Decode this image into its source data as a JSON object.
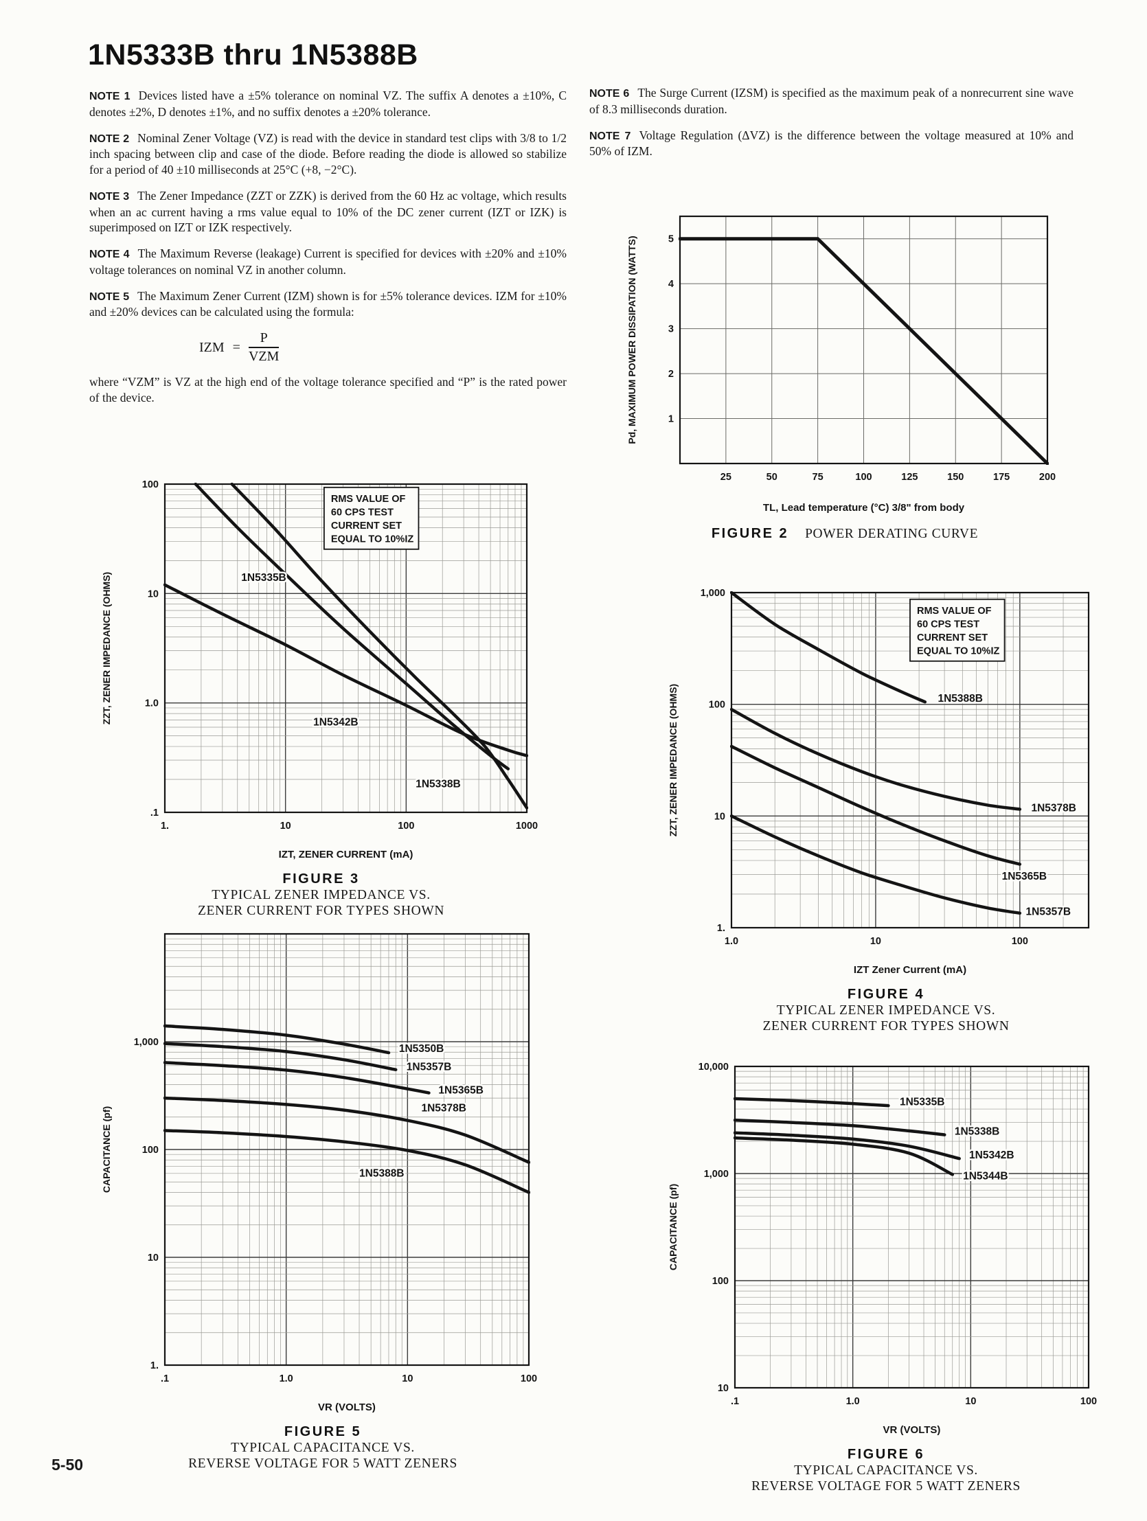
{
  "page": {
    "title": "1N5333B thru 1N5388B",
    "page_number": "5-50"
  },
  "notes_left": [
    {
      "label": "NOTE 1",
      "text": "Devices listed have a ±5% tolerance on nominal VZ. The suffix A denotes a ±10%, C denotes ±2%, D denotes ±1%, and no suffix denotes a ±20% tolerance."
    },
    {
      "label": "NOTE 2",
      "text": "Nominal Zener Voltage (VZ) is read with the device in standard test clips with 3/8 to 1/2 inch spacing between clip and case of the diode. Before reading the diode is allowed so stabilize for a period of 40 ±10 milliseconds at 25°C (+8, −2°C)."
    },
    {
      "label": "NOTE 3",
      "text": "The Zener Impedance (ZZT or ZZK) is derived from the 60 Hz ac voltage, which results when an ac current having a rms value equal to 10% of the DC zener current (IZT or IZK) is superimposed on IZT or IZK respectively."
    },
    {
      "label": "NOTE 4",
      "text": "The Maximum Reverse (leakage) Current is specified for devices with ±20% and ±10% voltage tolerances on nominal VZ in another column."
    },
    {
      "label": "NOTE 5",
      "text": "The Maximum Zener Current (IZM) shown is for ±5% tolerance devices. IZM for ±10% and ±20% devices can be calculated using the formula:"
    }
  ],
  "formula": {
    "lhs": "IZM",
    "eq": "=",
    "num": "P",
    "den": "VZM"
  },
  "where_text": "where “VZM” is VZ at the high end of the voltage tolerance specified and “P” is the rated power of the device.",
  "notes_right": [
    {
      "label": "NOTE 6",
      "text": "The Surge Current (IZSM) is specified as the maximum peak of a nonrecurrent sine wave of 8.3 milliseconds duration."
    },
    {
      "label": "NOTE 7",
      "text": "Voltage Regulation (ΔVZ) is the difference between the voltage measured at 10% and 50% of IZM."
    }
  ],
  "figures": {
    "fig2": {
      "label": "FIGURE 2",
      "title": "POWER DERATING CURVE"
    },
    "fig3": {
      "label": "FIGURE 3",
      "title1": "TYPICAL ZENER IMPEDANCE VS.",
      "title2": "ZENER CURRENT FOR TYPES SHOWN"
    },
    "fig4": {
      "label": "FIGURE 4",
      "title1": "TYPICAL ZENER IMPEDANCE VS.",
      "title2": "ZENER CURRENT FOR TYPES SHOWN"
    },
    "fig5": {
      "label": "FIGURE 5",
      "title1": "TYPICAL CAPACITANCE VS.",
      "title2": "REVERSE VOLTAGE FOR 5 WATT ZENERS"
    },
    "fig6": {
      "label": "FIGURE 6",
      "title1": "TYPICAL CAPACITANCE VS.",
      "title2": "REVERSE VOLTAGE FOR 5 WATT ZENERS"
    }
  },
  "colors": {
    "ink": "#141414",
    "grid_minor": "#9a9a95",
    "grid_major": "#3c3c3c",
    "paper": "#fcfcf9"
  },
  "chart_data": [
    {
      "id": "figure-2-power-derating",
      "type": "line",
      "xlog": false,
      "ylog": false,
      "xlim": [
        0,
        200
      ],
      "ylim": [
        0,
        5.5
      ],
      "xticks": [
        [
          25,
          "25"
        ],
        [
          50,
          "50"
        ],
        [
          75,
          "75"
        ],
        [
          100,
          "100"
        ],
        [
          125,
          "125"
        ],
        [
          150,
          "150"
        ],
        [
          175,
          "175"
        ],
        [
          200,
          "200"
        ]
      ],
      "yticks": [
        [
          1,
          "1"
        ],
        [
          2,
          "2"
        ],
        [
          3,
          "3"
        ],
        [
          4,
          "4"
        ],
        [
          5,
          "5"
        ]
      ],
      "xlabel": "TL, Lead temperature (°C) 3/8\" from body",
      "ylabel": "Pd, MAXIMUM POWER DISSIPATION (WATTS)",
      "grid": true,
      "straight": true,
      "lw": 5,
      "margins": {
        "l": 85,
        "r": 30,
        "t": 25,
        "b": 85
      },
      "series": [
        {
          "name": "power-derating-line",
          "points": [
            [
              0,
              5
            ],
            [
              75,
              5
            ],
            [
              200,
              0
            ]
          ]
        }
      ]
    },
    {
      "id": "figure-3-zener-impedance",
      "type": "line",
      "xlog": true,
      "ylog": true,
      "xlim": [
        1,
        1000
      ],
      "ylim": [
        0.1,
        100
      ],
      "xticks": [
        [
          1,
          "1."
        ],
        [
          10,
          "10"
        ],
        [
          100,
          "100"
        ],
        [
          1000,
          "1000"
        ]
      ],
      "yticks": [
        [
          0.1,
          ".1"
        ],
        [
          1,
          "1.0"
        ],
        [
          10,
          "10"
        ],
        [
          100,
          "100"
        ]
      ],
      "xlabel": "IZT, ZENER CURRENT (mA)",
      "ylabel": "ZZT, ZENER IMPEDANCE (OHMS)",
      "note": {
        "lines": [
          "RMS VALUE OF",
          "60 CPS TEST",
          "CURRENT SET",
          "EQUAL TO 10%IZ"
        ],
        "fx": 0.44,
        "fy": 0.01
      },
      "margins": {
        "l": 100,
        "r": 28,
        "t": 15,
        "b": 82
      },
      "series": [
        {
          "name": "1N5335B",
          "points": [
            [
              1.8,
              100
            ],
            [
              4,
              40
            ],
            [
              10,
              15
            ],
            [
              30,
              4.8
            ],
            [
              100,
              1.5
            ],
            [
              250,
              0.62
            ],
            [
              500,
              0.33
            ],
            [
              700,
              0.25
            ]
          ],
          "label_at": [
            4.3,
            13
          ]
        },
        {
          "name": "1N5342B",
          "points": [
            [
              1,
              12
            ],
            [
              3,
              6.5
            ],
            [
              10,
              3.4
            ],
            [
              30,
              1.8
            ],
            [
              100,
              0.95
            ],
            [
              300,
              0.52
            ],
            [
              700,
              0.37
            ],
            [
              1000,
              0.33
            ]
          ],
          "label_at": [
            17,
            0.62
          ]
        },
        {
          "name": "1N5338B",
          "points": [
            [
              3.6,
              100
            ],
            [
              8,
              40
            ],
            [
              20,
              13
            ],
            [
              50,
              4.5
            ],
            [
              120,
              1.7
            ],
            [
              250,
              0.78
            ],
            [
              450,
              0.4
            ],
            [
              700,
              0.2
            ],
            [
              1000,
              0.11
            ]
          ],
          "label_at": [
            120,
            0.17
          ]
        }
      ]
    },
    {
      "id": "figure-4-zener-impedance",
      "type": "line",
      "xlog": true,
      "ylog": true,
      "xlim": [
        1,
        300
      ],
      "ylim": [
        1,
        1000
      ],
      "xticks": [
        [
          1,
          "1.0"
        ],
        [
          10,
          "10"
        ],
        [
          100,
          "100"
        ]
      ],
      "yticks": [
        [
          1,
          "1."
        ],
        [
          10,
          "10"
        ],
        [
          100,
          "100"
        ],
        [
          1000,
          "1,000"
        ]
      ],
      "xlabel": "IZT Zener Current (mA)",
      "ylabel": "ZZT, ZENER IMPEDANCE (OHMS)",
      "note": {
        "lines": [
          "RMS VALUE OF",
          "60 CPS TEST",
          "CURRENT SET",
          "EQUAL TO 10%IZ"
        ],
        "fx": 0.5,
        "fy": 0.02
      },
      "margins": {
        "l": 100,
        "r": 30,
        "t": 15,
        "b": 82
      },
      "series": [
        {
          "name": "1N5388B",
          "points": [
            [
              1,
              1000
            ],
            [
              2,
              520
            ],
            [
              4,
              310
            ],
            [
              8,
              190
            ],
            [
              15,
              130
            ],
            [
              22,
              105
            ]
          ],
          "label_at": [
            27,
            105
          ]
        },
        {
          "name": "1N5378B",
          "points": [
            [
              1,
              90
            ],
            [
              2,
              55
            ],
            [
              4,
              36
            ],
            [
              8,
              25
            ],
            [
              15,
              19
            ],
            [
              30,
              15
            ],
            [
              60,
              12.5
            ],
            [
              100,
              11.5
            ]
          ],
          "label_at": [
            120,
            11
          ]
        },
        {
          "name": "1N5365B",
          "points": [
            [
              1,
              42
            ],
            [
              2,
              27
            ],
            [
              4,
              18
            ],
            [
              8,
              12
            ],
            [
              15,
              8.5
            ],
            [
              30,
              6
            ],
            [
              60,
              4.4
            ],
            [
              100,
              3.7
            ]
          ],
          "label_at": [
            75,
            2.7
          ]
        },
        {
          "name": "1N5357B",
          "points": [
            [
              1,
              10
            ],
            [
              2,
              6.5
            ],
            [
              4,
              4.4
            ],
            [
              8,
              3.1
            ],
            [
              15,
              2.4
            ],
            [
              30,
              1.85
            ],
            [
              60,
              1.5
            ],
            [
              100,
              1.35
            ]
          ],
          "label_at": [
            110,
            1.3
          ]
        }
      ]
    },
    {
      "id": "figure-5-capacitance",
      "type": "line",
      "xlog": true,
      "ylog": true,
      "xlim": [
        0.1,
        100
      ],
      "ylim": [
        1,
        10000
      ],
      "xticks": [
        [
          0.1,
          ".1"
        ],
        [
          1,
          "1.0"
        ],
        [
          10,
          "10"
        ],
        [
          100,
          "100"
        ]
      ],
      "yticks": [
        [
          1,
          "1."
        ],
        [
          10,
          "10"
        ],
        [
          100,
          "100"
        ],
        [
          1000,
          "1,000"
        ]
      ],
      "xlabel": "VR (VOLTS)",
      "ylabel": "CAPACITANCE (pf)",
      "margins": {
        "l": 100,
        "r": 30,
        "t": 15,
        "b": 82
      },
      "series": [
        {
          "name": "1N5350B",
          "points": [
            [
              0.1,
              1400
            ],
            [
              0.3,
              1300
            ],
            [
              1,
              1150
            ],
            [
              3,
              950
            ],
            [
              7,
              790
            ]
          ],
          "label_at": [
            8.5,
            800
          ]
        },
        {
          "name": "1N5357B",
          "points": [
            [
              0.1,
              960
            ],
            [
              0.3,
              900
            ],
            [
              1,
              810
            ],
            [
              3,
              680
            ],
            [
              8,
              550
            ]
          ],
          "label_at": [
            9.8,
            545
          ]
        },
        {
          "name": "1N5365B",
          "points": [
            [
              0.1,
              640
            ],
            [
              0.3,
              600
            ],
            [
              1,
              545
            ],
            [
              3,
              465
            ],
            [
              10,
              365
            ],
            [
              15,
              335
            ]
          ],
          "label_at": [
            18,
            330
          ]
        },
        {
          "name": "1N5378B",
          "points": [
            [
              0.1,
              300
            ],
            [
              0.3,
              285
            ],
            [
              1,
              262
            ],
            [
              3,
              232
            ],
            [
              10,
              186
            ],
            [
              30,
              136
            ],
            [
              100,
              76
            ]
          ],
          "label_at": [
            13,
            225
          ]
        },
        {
          "name": "1N5388B",
          "points": [
            [
              0.1,
              150
            ],
            [
              0.3,
              143
            ],
            [
              1,
              132
            ],
            [
              3,
              118
            ],
            [
              10,
              98
            ],
            [
              30,
              72
            ],
            [
              100,
              40
            ]
          ],
          "label_at": [
            4,
            56
          ]
        }
      ]
    },
    {
      "id": "figure-6-capacitance",
      "type": "line",
      "xlog": true,
      "ylog": true,
      "xlim": [
        0.1,
        100
      ],
      "ylim": [
        10,
        10000
      ],
      "xticks": [
        [
          0.1,
          ".1"
        ],
        [
          1,
          "1.0"
        ],
        [
          10,
          "10"
        ],
        [
          100,
          "100"
        ]
      ],
      "yticks": [
        [
          10,
          "10"
        ],
        [
          100,
          "100"
        ],
        [
          1000,
          "1,000"
        ],
        [
          10000,
          "10,000"
        ]
      ],
      "xlabel": "VR (VOLTS)",
      "ylabel": "CAPACITANCE (pf)",
      "margins": {
        "l": 105,
        "r": 30,
        "t": 15,
        "b": 82
      },
      "series": [
        {
          "name": "1N5335B",
          "points": [
            [
              0.1,
              5000
            ],
            [
              0.3,
              4800
            ],
            [
              1,
              4500
            ],
            [
              2,
              4300
            ]
          ],
          "label_at": [
            2.5,
            4350
          ]
        },
        {
          "name": "1N5338B",
          "points": [
            [
              0.1,
              3150
            ],
            [
              0.3,
              3000
            ],
            [
              1,
              2800
            ],
            [
              3,
              2500
            ],
            [
              6,
              2300
            ]
          ],
          "label_at": [
            7.3,
            2300
          ]
        },
        {
          "name": "1N5342B",
          "points": [
            [
              0.1,
              2400
            ],
            [
              0.3,
              2280
            ],
            [
              1,
              2100
            ],
            [
              3,
              1800
            ],
            [
              8,
              1380
            ]
          ],
          "label_at": [
            9.7,
            1380
          ]
        },
        {
          "name": "1N5344B",
          "points": [
            [
              0.1,
              2150
            ],
            [
              0.3,
              2050
            ],
            [
              1,
              1880
            ],
            [
              3,
              1550
            ],
            [
              7,
              980
            ]
          ],
          "label_at": [
            8.6,
            880
          ]
        }
      ]
    }
  ]
}
